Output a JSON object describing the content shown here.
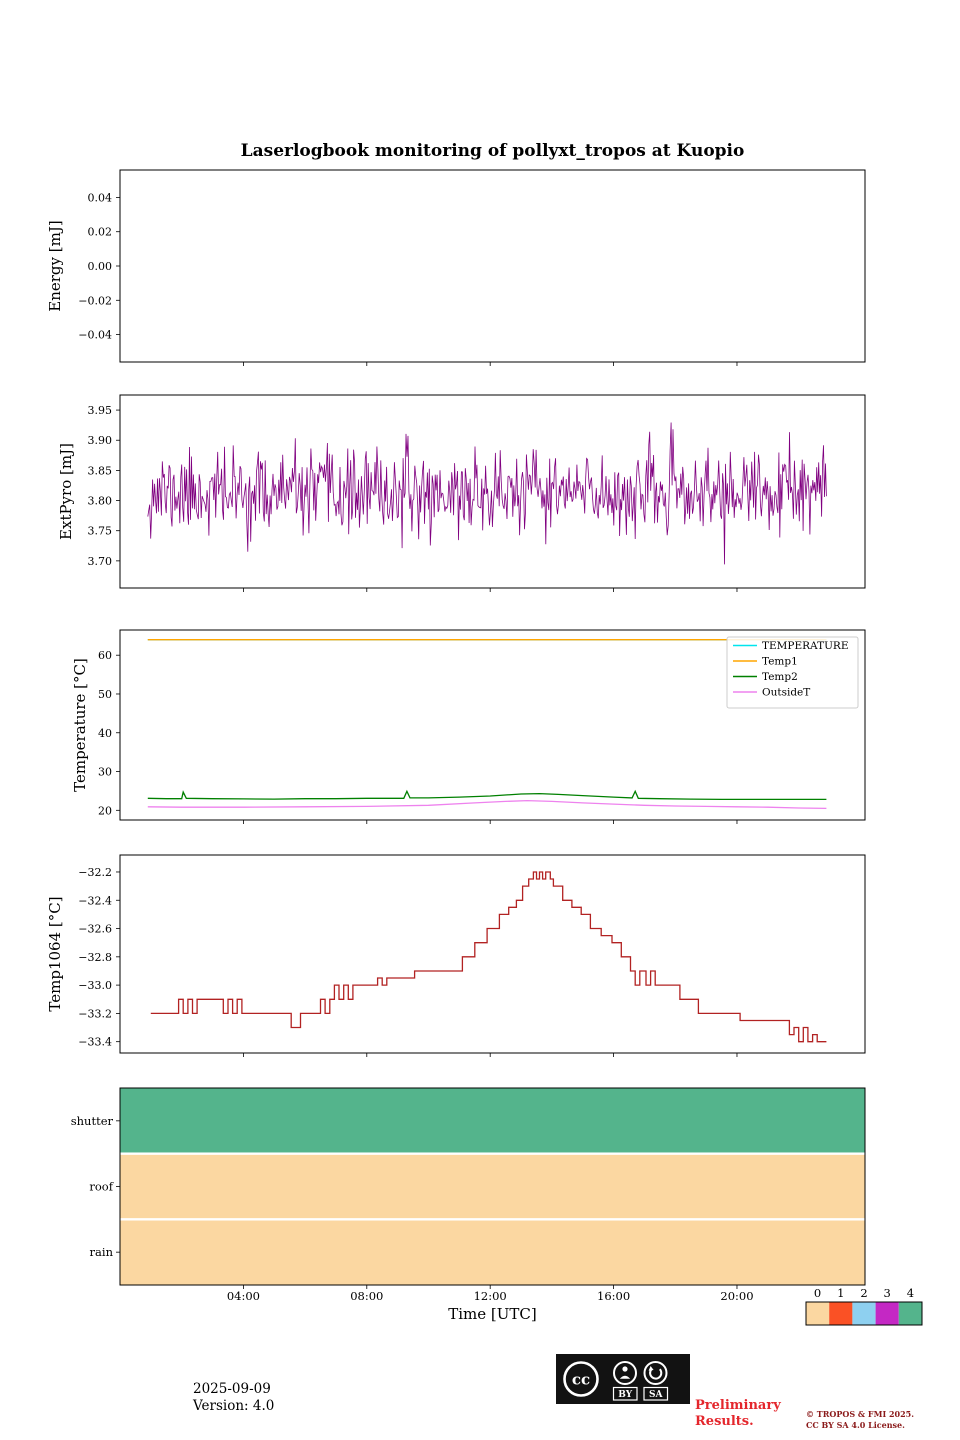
{
  "title": "Laserlogbook monitoring of pollyxt_tropos at Kuopio",
  "axes": {
    "xlabel": "Time [UTC]",
    "x_range": [
      0,
      24.15
    ],
    "x_ticks": [
      {
        "value": 4,
        "label": "04:00"
      },
      {
        "value": 8,
        "label": "08:00"
      },
      {
        "value": 12,
        "label": "12:00"
      },
      {
        "value": 16,
        "label": "16:00"
      },
      {
        "value": 20,
        "label": "20:00"
      }
    ]
  },
  "chart_data": [
    {
      "id": "energy",
      "type": "line",
      "ylabel": "Energy [mJ]",
      "ylim": [
        -0.056,
        0.056
      ],
      "yticks": [
        {
          "v": 0.04,
          "label": "0.04"
        },
        {
          "v": 0.02,
          "label": "0.02"
        },
        {
          "v": 0.0,
          "label": "0.00"
        },
        {
          "v": -0.02,
          "label": "−0.02"
        },
        {
          "v": -0.04,
          "label": "−0.04"
        }
      ],
      "series": []
    },
    {
      "id": "extpyro",
      "type": "line",
      "ylabel": "ExtPyro [mJ]",
      "ylim": [
        3.655,
        3.975
      ],
      "yticks": [
        {
          "v": 3.95,
          "label": "3.95"
        },
        {
          "v": 3.9,
          "label": "3.90"
        },
        {
          "v": 3.85,
          "label": "3.85"
        },
        {
          "v": 3.8,
          "label": "3.80"
        },
        {
          "v": 3.75,
          "label": "3.75"
        },
        {
          "v": 3.7,
          "label": "3.70"
        }
      ],
      "series": [
        {
          "name": "ExtPyro",
          "color": "#800080",
          "width": 0.8,
          "noise": {
            "description": "dense noisy pyrometer pulse-energy signal, mean ≈3.81 mJ, spread ≈±0.04 mJ, extremes 3.67–3.96 mJ, 00:55–22:55 UTC",
            "mean": 3.812,
            "std": 0.034,
            "min": 3.668,
            "max": 3.956,
            "points": 700,
            "seed": 11,
            "x_start": 0.9,
            "x_end": 22.9
          }
        }
      ]
    },
    {
      "id": "temperature",
      "type": "line",
      "ylabel": "Temperature [°C]",
      "ylim": [
        17.5,
        66.5
      ],
      "legend": true,
      "yticks": [
        {
          "v": 60,
          "label": "60"
        },
        {
          "v": 50,
          "label": "50"
        },
        {
          "v": 40,
          "label": "40"
        },
        {
          "v": 30,
          "label": "30"
        },
        {
          "v": 20,
          "label": "20"
        }
      ],
      "series": [
        {
          "name": "TEMPERATURE",
          "color": "#00e5ee",
          "width": 1.4,
          "points": [
            [
              0.9,
              64
            ],
            [
              22.9,
              64
            ]
          ]
        },
        {
          "name": "Temp1",
          "color": "#ffa500",
          "width": 1.4,
          "points": [
            [
              0.9,
              64
            ],
            [
              22.9,
              64
            ]
          ]
        },
        {
          "name": "Temp2",
          "color": "#008000",
          "width": 1.3,
          "points": [
            [
              0.9,
              23.1
            ],
            [
              1.5,
              23.0
            ],
            [
              2.0,
              23.0
            ],
            [
              2.05,
              24.7
            ],
            [
              2.15,
              23.1
            ],
            [
              3.0,
              23.0
            ],
            [
              4.0,
              22.95
            ],
            [
              5.0,
              22.9
            ],
            [
              6.0,
              23.0
            ],
            [
              7.0,
              23.0
            ],
            [
              8.0,
              23.1
            ],
            [
              9.2,
              23.1
            ],
            [
              9.3,
              24.9
            ],
            [
              9.4,
              23.2
            ],
            [
              10.0,
              23.2
            ],
            [
              11.0,
              23.4
            ],
            [
              12.0,
              23.7
            ],
            [
              13.0,
              24.2
            ],
            [
              13.6,
              24.3
            ],
            [
              14.2,
              24.1
            ],
            [
              15.0,
              23.8
            ],
            [
              16.0,
              23.4
            ],
            [
              16.6,
              23.2
            ],
            [
              16.7,
              24.9
            ],
            [
              16.8,
              23.1
            ],
            [
              17.5,
              23.0
            ],
            [
              18.5,
              22.9
            ],
            [
              19.5,
              22.8
            ],
            [
              20.5,
              22.8
            ],
            [
              21.5,
              22.8
            ],
            [
              22.9,
              22.8
            ]
          ]
        },
        {
          "name": "OutsideT",
          "color": "#ee82ee",
          "width": 1.3,
          "points": [
            [
              0.9,
              20.9
            ],
            [
              2.0,
              20.8
            ],
            [
              4.0,
              20.8
            ],
            [
              6.0,
              20.9
            ],
            [
              8.0,
              21.0
            ],
            [
              10.0,
              21.3
            ],
            [
              11.5,
              21.9
            ],
            [
              12.5,
              22.3
            ],
            [
              13.2,
              22.5
            ],
            [
              14.0,
              22.3
            ],
            [
              15.0,
              21.9
            ],
            [
              16.0,
              21.6
            ],
            [
              17.0,
              21.3
            ],
            [
              18.0,
              21.1
            ],
            [
              19.0,
              21.0
            ],
            [
              20.0,
              20.9
            ],
            [
              21.0,
              20.8
            ],
            [
              22.0,
              20.6
            ],
            [
              22.9,
              20.5
            ]
          ]
        }
      ]
    },
    {
      "id": "temp1064",
      "type": "step",
      "ylabel": "Temp1064 [°C]",
      "ylim": [
        -33.48,
        -32.08
      ],
      "yticks": [
        {
          "v": -32.2,
          "label": "−32.2"
        },
        {
          "v": -32.4,
          "label": "−32.4"
        },
        {
          "v": -32.6,
          "label": "−32.6"
        },
        {
          "v": -32.8,
          "label": "−32.8"
        },
        {
          "v": -33.0,
          "label": "−33.0"
        },
        {
          "v": -33.2,
          "label": "−33.2"
        },
        {
          "v": -33.4,
          "label": "−33.4"
        }
      ],
      "series": [
        {
          "name": "Temp1064",
          "color": "#b22222",
          "width": 1.3,
          "points": [
            [
              1.0,
              -33.2
            ],
            [
              1.9,
              -33.1
            ],
            [
              2.05,
              -33.2
            ],
            [
              2.2,
              -33.1
            ],
            [
              2.35,
              -33.2
            ],
            [
              2.5,
              -33.1
            ],
            [
              3.2,
              -33.1
            ],
            [
              3.35,
              -33.2
            ],
            [
              3.5,
              -33.1
            ],
            [
              3.65,
              -33.2
            ],
            [
              3.8,
              -33.1
            ],
            [
              3.95,
              -33.2
            ],
            [
              4.6,
              -33.2
            ],
            [
              5.55,
              -33.3
            ],
            [
              5.85,
              -33.2
            ],
            [
              6.5,
              -33.1
            ],
            [
              6.65,
              -33.2
            ],
            [
              6.8,
              -33.1
            ],
            [
              6.95,
              -33.0
            ],
            [
              7.1,
              -33.1
            ],
            [
              7.25,
              -33.0
            ],
            [
              7.4,
              -33.1
            ],
            [
              7.55,
              -33.0
            ],
            [
              8.2,
              -33.0
            ],
            [
              8.35,
              -32.95
            ],
            [
              8.5,
              -33.0
            ],
            [
              8.65,
              -32.95
            ],
            [
              9.4,
              -32.95
            ],
            [
              9.55,
              -32.9
            ],
            [
              10.8,
              -32.9
            ],
            [
              11.1,
              -32.8
            ],
            [
              11.5,
              -32.7
            ],
            [
              11.9,
              -32.6
            ],
            [
              12.3,
              -32.5
            ],
            [
              12.6,
              -32.45
            ],
            [
              12.85,
              -32.4
            ],
            [
              13.05,
              -32.3
            ],
            [
              13.25,
              -32.25
            ],
            [
              13.4,
              -32.2
            ],
            [
              13.5,
              -32.25
            ],
            [
              13.6,
              -32.2
            ],
            [
              13.7,
              -32.25
            ],
            [
              13.8,
              -32.2
            ],
            [
              13.95,
              -32.25
            ],
            [
              14.05,
              -32.3
            ],
            [
              14.35,
              -32.4
            ],
            [
              14.65,
              -32.45
            ],
            [
              14.95,
              -32.5
            ],
            [
              15.25,
              -32.6
            ],
            [
              15.6,
              -32.65
            ],
            [
              15.95,
              -32.7
            ],
            [
              16.25,
              -32.8
            ],
            [
              16.55,
              -32.9
            ],
            [
              16.7,
              -33.0
            ],
            [
              16.85,
              -32.9
            ],
            [
              17.05,
              -33.0
            ],
            [
              17.2,
              -32.9
            ],
            [
              17.35,
              -33.0
            ],
            [
              17.95,
              -33.0
            ],
            [
              18.15,
              -33.1
            ],
            [
              18.6,
              -33.1
            ],
            [
              18.75,
              -33.2
            ],
            [
              19.9,
              -33.2
            ],
            [
              20.1,
              -33.25
            ],
            [
              21.55,
              -33.25
            ],
            [
              21.7,
              -33.35
            ],
            [
              21.85,
              -33.3
            ],
            [
              22.0,
              -33.4
            ],
            [
              22.15,
              -33.3
            ],
            [
              22.3,
              -33.4
            ],
            [
              22.45,
              -33.35
            ],
            [
              22.6,
              -33.4
            ],
            [
              22.9,
              -33.4
            ]
          ]
        }
      ]
    },
    {
      "id": "status",
      "type": "bands",
      "rows": [
        {
          "label": "shutter",
          "value": 4
        },
        {
          "label": "roof",
          "value": 0
        },
        {
          "label": "rain",
          "value": 0
        }
      ],
      "colormap": [
        "#fbd7a1",
        "#fa5125",
        "#8ed0f0",
        "#c428c4",
        "#54b48c"
      ]
    }
  ],
  "colorbar": {
    "tick_labels": [
      "0",
      "1",
      "2",
      "3",
      "4"
    ],
    "colors": [
      "#fbd7a1",
      "#fa5125",
      "#8ed0f0",
      "#c428c4",
      "#54b48c"
    ]
  },
  "footer": {
    "date": "2025-09-09",
    "version": "Version: 4.0"
  },
  "preliminary": {
    "line1": "Preliminary",
    "line2": "Results."
  },
  "copyright": {
    "line1": "© TROPOS & FMI 2025.",
    "line2": "CC BY SA 4.0 License."
  },
  "license_badge": {
    "cc": "cc",
    "by": "BY",
    "sa": "SA"
  }
}
